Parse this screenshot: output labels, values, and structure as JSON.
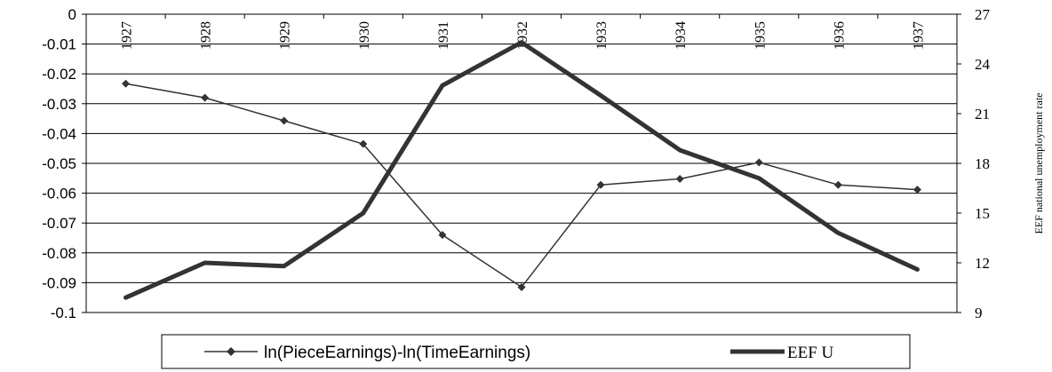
{
  "chart_data": {
    "type": "line",
    "x": [
      "1927",
      "1928",
      "1929",
      "1930",
      "1931",
      "1932",
      "1933",
      "1934",
      "1935",
      "1936",
      "1937"
    ],
    "series": [
      {
        "name": "ln(PieceEarnings)-ln(TimeEarnings)",
        "axis": "left",
        "color": "#333333",
        "marker": "diamond",
        "values": [
          -0.0233,
          -0.028,
          -0.0357,
          -0.0435,
          -0.074,
          -0.0915,
          -0.0572,
          -0.0552,
          -0.0497,
          -0.0572,
          -0.0588
        ]
      },
      {
        "name": "EEF U",
        "axis": "right",
        "color": "#333333",
        "marker": "none",
        "values": [
          9.9,
          12.0,
          11.8,
          15.0,
          22.7,
          25.3,
          22.1,
          18.8,
          17.1,
          13.8,
          11.6
        ]
      }
    ],
    "y_left": {
      "ylim": [
        -0.1,
        0
      ],
      "ticks": [
        "0",
        "-0.01",
        "-0.02",
        "-0.03",
        "-0.04",
        "-0.05",
        "-0.06",
        "-0.07",
        "-0.08",
        "-0.09",
        "-0.1"
      ]
    },
    "y_right": {
      "label": "EEF national unemployment rate",
      "ylim": [
        9,
        27
      ],
      "ticks": [
        "27",
        "24",
        "21",
        "18",
        "15",
        "12",
        "9"
      ]
    },
    "grid": "horizontal",
    "legend_position": "bottom"
  }
}
